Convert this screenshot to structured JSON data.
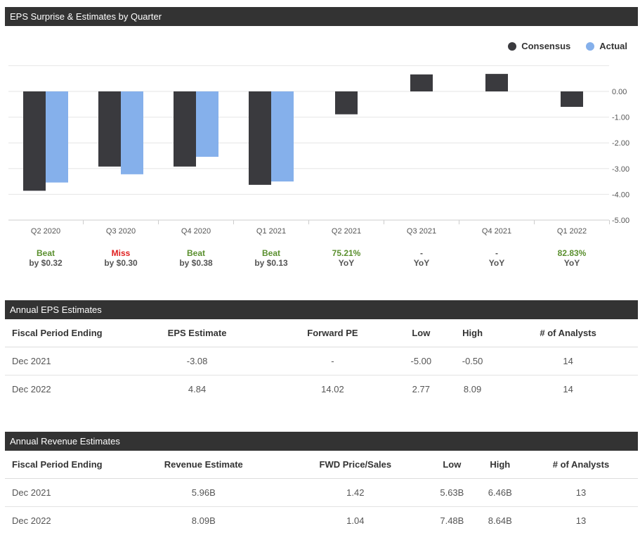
{
  "eps_chart": {
    "title": "EPS Surprise & Estimates by Quarter",
    "legend": [
      {
        "label": "Consensus",
        "color": "#3a3a3e"
      },
      {
        "label": "Actual",
        "color": "#85b0eb"
      }
    ],
    "verdicts": [
      {
        "status": "Beat",
        "detail": "by $0.32",
        "color": "#5a8f2e"
      },
      {
        "status": "Miss",
        "detail": "by $0.30",
        "color": "#e02020"
      },
      {
        "status": "Beat",
        "detail": "by $0.38",
        "color": "#5a8f2e"
      },
      {
        "status": "Beat",
        "detail": "by $0.13",
        "color": "#5a8f2e"
      },
      {
        "status": "75.21%",
        "detail": "YoY",
        "color": "#5a8f2e"
      },
      {
        "status": "-",
        "detail": "YoY",
        "color": "#555555"
      },
      {
        "status": "-",
        "detail": "YoY",
        "color": "#555555"
      },
      {
        "status": "82.83%",
        "detail": "YoY",
        "color": "#5a8f2e"
      }
    ]
  },
  "chart_data": {
    "type": "bar",
    "title": "EPS Surprise & Estimates by Quarter",
    "categories": [
      "Q2 2020",
      "Q3 2020",
      "Q4 2020",
      "Q1 2021",
      "Q2 2021",
      "Q3 2021",
      "Q4 2021",
      "Q1 2022"
    ],
    "series": [
      {
        "name": "Consensus",
        "color": "#3a3a3e",
        "values": [
          -3.86,
          -2.92,
          -2.92,
          -3.63,
          -0.89,
          0.66,
          0.68,
          -0.6
        ]
      },
      {
        "name": "Actual",
        "color": "#85b0eb",
        "values": [
          -3.54,
          -3.22,
          -2.54,
          -3.5,
          null,
          null,
          null,
          null
        ]
      }
    ],
    "y_ticks": [
      0,
      -1,
      -2,
      -3,
      -4,
      -5
    ],
    "y_tick_labels": [
      "0.00",
      "-1.00",
      "-2.00",
      "-3.00",
      "-4.00",
      "-5.00"
    ],
    "ylim": [
      -5,
      1
    ],
    "grid": true,
    "legend_position": "top-right"
  },
  "annual_eps": {
    "title": "Annual EPS Estimates",
    "headers": [
      "Fiscal Period Ending",
      "EPS Estimate",
      "Forward PE",
      "Low",
      "High",
      "# of Analysts"
    ],
    "rows": [
      [
        "Dec 2021",
        "-3.08",
        "-",
        "-5.00",
        "-0.50",
        "14"
      ],
      [
        "Dec 2022",
        "4.84",
        "14.02",
        "2.77",
        "8.09",
        "14"
      ]
    ]
  },
  "annual_revenue": {
    "title": "Annual Revenue Estimates",
    "headers": [
      "Fiscal Period Ending",
      "Revenue Estimate",
      "FWD Price/Sales",
      "Low",
      "High",
      "# of Analysts"
    ],
    "rows": [
      [
        "Dec 2021",
        "5.96B",
        "1.42",
        "5.63B",
        "6.46B",
        "13"
      ],
      [
        "Dec 2022",
        "8.09B",
        "1.04",
        "7.48B",
        "8.64B",
        "13"
      ]
    ]
  }
}
